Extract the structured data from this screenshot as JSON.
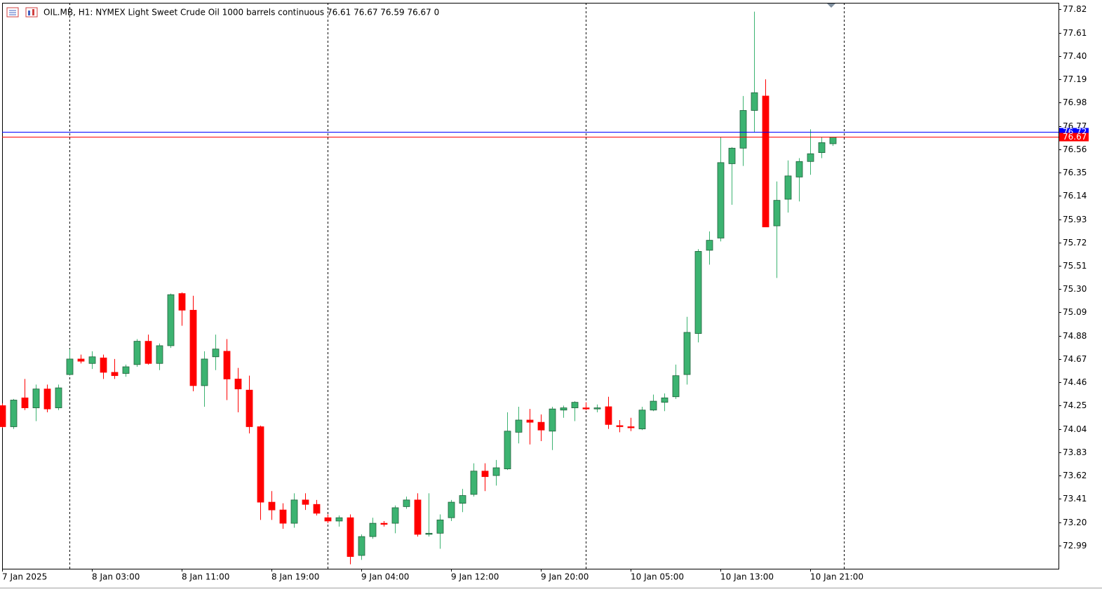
{
  "chart_data": {
    "type": "candlestick",
    "title": "OIL.MB, H1:  NYMEX Light Sweet Crude Oil 1000 barrels continuous  76.61 76.67 76.59 76.67  0",
    "categories": [
      "7 Jan 2025",
      null,
      null,
      null,
      null,
      null,
      null,
      null,
      "8 Jan 03:00",
      null,
      null,
      null,
      null,
      null,
      null,
      null,
      "8 Jan 11:00",
      null,
      null,
      null,
      null,
      null,
      null,
      null,
      "8 Jan 19:00",
      null,
      null,
      null,
      null,
      null,
      null,
      null,
      "9 Jan 04:00",
      null,
      null,
      null,
      null,
      null,
      null,
      null,
      "9 Jan 12:00",
      null,
      null,
      null,
      null,
      null,
      null,
      null,
      "9 Jan 20:00",
      null,
      null,
      null,
      null,
      null,
      null,
      null,
      "10 Jan 05:00",
      null,
      null,
      null,
      null,
      null,
      null,
      null,
      "10 Jan 13:00",
      null,
      null,
      null,
      null,
      null,
      null,
      null,
      "10 Jan 21:00",
      null,
      null
    ],
    "series": [
      {
        "up_color": "#3cb371",
        "down_color": "#ff0000",
        "open": [
          74.25,
          74.06,
          74.32,
          74.23,
          74.4,
          74.23,
          74.53,
          74.67,
          74.63,
          74.68,
          74.55,
          74.54,
          74.62,
          74.83,
          74.63,
          74.79,
          75.26,
          75.11,
          74.43,
          74.69,
          74.74,
          74.49,
          74.39,
          74.06,
          73.38,
          73.31,
          73.19,
          73.4,
          73.36,
          73.24,
          73.21,
          73.24,
          72.9,
          73.07,
          73.19,
          73.19,
          73.34,
          73.4,
          73.09,
          73.1,
          73.24,
          73.37,
          73.45,
          73.66,
          73.62,
          73.68,
          74.01,
          74.12,
          74.1,
          74.02,
          74.21,
          74.23,
          74.23,
          74.22,
          74.24,
          74.07,
          74.06,
          74.04,
          74.21,
          74.28,
          74.33,
          74.53,
          74.9,
          75.65,
          75.76,
          76.43,
          76.57,
          76.91,
          77.04,
          75.87,
          76.11,
          76.31,
          76.45,
          76.53,
          76.61
        ],
        "high": [
          74.27,
          74.31,
          74.49,
          74.44,
          74.44,
          74.44,
          74.76,
          74.71,
          74.74,
          74.71,
          74.67,
          74.62,
          74.85,
          74.89,
          74.81,
          75.26,
          75.27,
          75.24,
          74.74,
          74.89,
          74.85,
          74.59,
          74.52,
          74.07,
          73.48,
          73.37,
          73.46,
          73.46,
          73.4,
          73.27,
          73.26,
          73.27,
          73.09,
          73.24,
          73.21,
          73.35,
          73.43,
          73.46,
          73.46,
          73.27,
          73.4,
          73.5,
          73.73,
          73.73,
          73.76,
          74.19,
          74.24,
          74.22,
          74.17,
          74.24,
          74.25,
          74.29,
          74.28,
          74.26,
          74.33,
          74.12,
          74.14,
          74.24,
          74.35,
          74.36,
          74.62,
          75.05,
          75.66,
          75.82,
          76.67,
          76.58,
          77.04,
          77.8,
          77.19,
          76.27,
          76.46,
          76.48,
          76.74,
          76.67,
          76.67
        ],
        "low": [
          74.05,
          74.04,
          74.21,
          74.11,
          74.19,
          74.21,
          74.52,
          74.63,
          74.58,
          74.49,
          74.49,
          74.51,
          74.6,
          74.62,
          74.57,
          74.77,
          74.97,
          74.38,
          74.24,
          74.57,
          74.3,
          74.19,
          74.0,
          73.22,
          73.22,
          73.14,
          73.15,
          73.31,
          73.26,
          73.19,
          73.16,
          72.82,
          72.86,
          73.05,
          73.16,
          73.1,
          73.32,
          73.07,
          73.07,
          72.96,
          73.21,
          73.29,
          73.43,
          73.48,
          73.53,
          73.67,
          73.91,
          73.9,
          73.93,
          73.85,
          74.14,
          74.11,
          74.21,
          74.19,
          74.04,
          74.01,
          74.02,
          74.03,
          74.2,
          74.2,
          74.31,
          74.44,
          74.82,
          75.52,
          75.73,
          76.06,
          76.41,
          76.71,
          75.86,
          75.4,
          75.99,
          76.09,
          76.33,
          76.48,
          76.59
        ],
        "close": [
          74.06,
          74.3,
          74.23,
          74.4,
          74.22,
          74.41,
          74.67,
          74.65,
          74.69,
          74.55,
          74.52,
          74.6,
          74.83,
          74.63,
          74.79,
          75.25,
          75.11,
          74.43,
          74.67,
          74.76,
          74.49,
          74.4,
          74.06,
          73.38,
          73.31,
          73.19,
          73.4,
          73.36,
          73.28,
          73.21,
          73.24,
          72.89,
          73.07,
          73.19,
          73.18,
          73.33,
          73.4,
          73.09,
          73.1,
          73.22,
          73.38,
          73.44,
          73.66,
          73.61,
          73.69,
          74.02,
          74.12,
          74.1,
          74.03,
          74.22,
          74.23,
          74.28,
          74.22,
          74.23,
          74.08,
          74.06,
          74.05,
          74.21,
          74.29,
          74.32,
          74.52,
          74.91,
          75.64,
          75.74,
          76.44,
          76.57,
          76.91,
          77.07,
          75.86,
          76.1,
          76.32,
          76.45,
          76.52,
          76.62,
          76.67
        ]
      }
    ],
    "hlines": [
      {
        "value": 76.72,
        "color": "#0000ff"
      },
      {
        "value": 76.67,
        "color": "#ff0000"
      }
    ],
    "ylim": [
      72.78,
      77.88
    ],
    "yticks": [
      77.82,
      77.61,
      {
        "value": 77.4,
        "label": "77.40"
      },
      77.19,
      76.98,
      76.77,
      76.56,
      76.35,
      76.14,
      75.93,
      75.72,
      75.51,
      {
        "value": 75.3,
        "label": "75.30"
      },
      75.09,
      74.88,
      74.67,
      74.46,
      74.25,
      74.04,
      73.83,
      73.62,
      73.41,
      {
        "value": 73.2,
        "label": "73.20"
      },
      72.99
    ]
  }
}
